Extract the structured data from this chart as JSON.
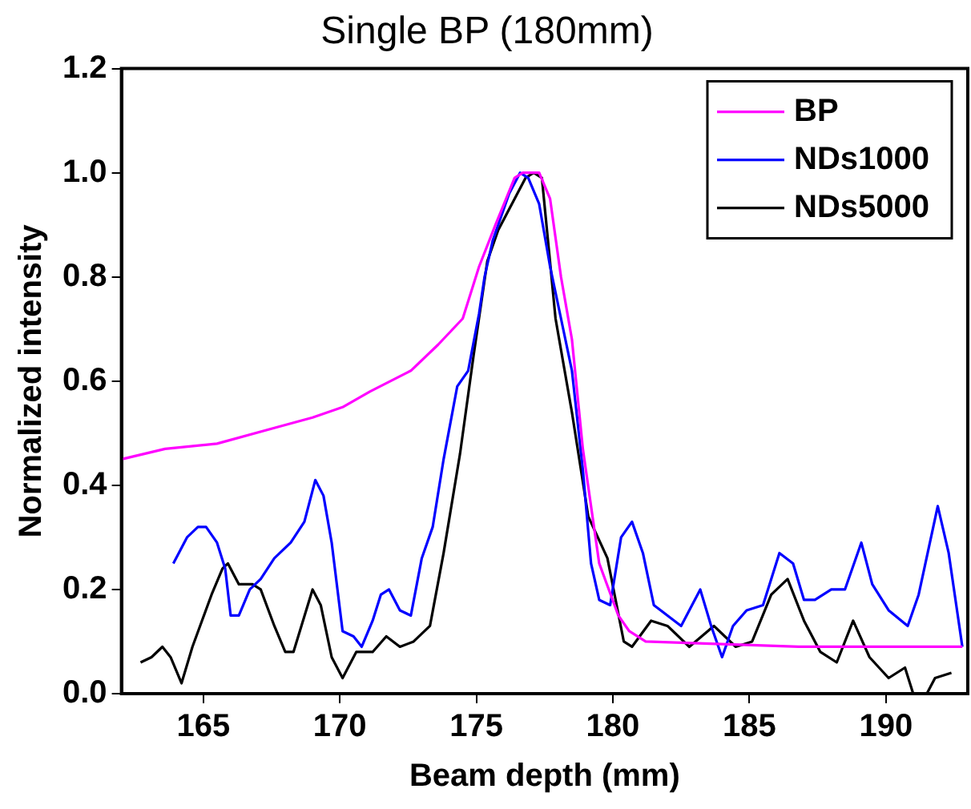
{
  "chart_data": {
    "type": "line",
    "title": "Single BP (180mm)",
    "xlabel": "Beam depth (mm)",
    "ylabel": "Normalized intensity",
    "xlim": [
      162,
      193
    ],
    "xticks": [
      165,
      170,
      175,
      180,
      185,
      190
    ],
    "ylim": [
      0,
      1.2
    ],
    "yticks": [
      {
        "value": 0,
        "label": "0.0"
      },
      {
        "value": 0.2,
        "label": "0.2"
      },
      {
        "value": 0.4,
        "label": "0.4"
      },
      {
        "value": 0.6,
        "label": "0.6"
      },
      {
        "value": 0.8,
        "label": "0.8"
      },
      {
        "value": 1,
        "label": "1.0"
      },
      {
        "value": 1.2,
        "label": "1.2"
      }
    ],
    "grid": false,
    "legend": "top right",
    "marker": "none",
    "line_style": "solid",
    "series": [
      {
        "name": "BP",
        "color": "#ff00ff",
        "x": [
          162,
          163.6,
          165.5,
          167.6,
          169.0,
          170.1,
          171.1,
          172.6,
          173.6,
          174.5,
          175.1,
          175.7,
          176.4,
          176.7,
          177.3,
          177.7,
          178.1,
          178.5,
          178.9,
          179.5,
          180.2,
          180.6,
          181.2,
          186.8,
          192.8
        ],
        "values": [
          0.45,
          0.47,
          0.48,
          0.51,
          0.53,
          0.55,
          0.58,
          0.62,
          0.67,
          0.72,
          0.82,
          0.9,
          0.99,
          1.0,
          1.0,
          0.95,
          0.8,
          0.68,
          0.47,
          0.25,
          0.15,
          0.12,
          0.1,
          0.09,
          0.09
        ]
      },
      {
        "name": "NDs1000",
        "color": "#0000ff",
        "x": [
          163.9,
          164.4,
          164.8,
          165.1,
          165.5,
          165.8,
          166.0,
          166.3,
          166.7,
          167.1,
          167.6,
          168.2,
          168.7,
          169.1,
          169.4,
          169.7,
          170.1,
          170.5,
          170.8,
          171.2,
          171.5,
          171.8,
          172.2,
          172.6,
          173.0,
          173.4,
          173.8,
          174.3,
          174.7,
          175.1,
          175.3,
          175.6,
          176.2,
          176.6,
          176.9,
          177.3,
          177.7,
          178.1,
          178.5,
          178.9,
          179.2,
          179.5,
          179.9,
          180.3,
          180.7,
          181.1,
          181.5,
          182.0,
          182.5,
          183.2,
          183.6,
          184.0,
          184.4,
          184.9,
          185.5,
          186.1,
          186.6,
          187.0,
          187.4,
          188.0,
          188.5,
          189.1,
          189.5,
          190.1,
          190.8,
          191.2,
          191.9,
          192.3,
          192.8
        ],
        "values": [
          0.25,
          0.3,
          0.32,
          0.32,
          0.29,
          0.24,
          0.15,
          0.15,
          0.2,
          0.22,
          0.26,
          0.29,
          0.33,
          0.41,
          0.38,
          0.29,
          0.12,
          0.11,
          0.09,
          0.14,
          0.19,
          0.2,
          0.16,
          0.15,
          0.26,
          0.32,
          0.45,
          0.59,
          0.62,
          0.73,
          0.8,
          0.87,
          0.96,
          1.0,
          0.99,
          0.94,
          0.82,
          0.72,
          0.62,
          0.43,
          0.25,
          0.18,
          0.17,
          0.3,
          0.33,
          0.27,
          0.17,
          0.15,
          0.13,
          0.2,
          0.13,
          0.07,
          0.13,
          0.16,
          0.17,
          0.27,
          0.25,
          0.18,
          0.18,
          0.2,
          0.2,
          0.29,
          0.21,
          0.16,
          0.13,
          0.19,
          0.36,
          0.27,
          0.09
        ]
      },
      {
        "name": "NDs5000",
        "color": "#000000",
        "x": [
          162.7,
          163.1,
          163.5,
          163.8,
          164.2,
          164.6,
          165.3,
          165.7,
          165.9,
          166.3,
          166.8,
          167.1,
          167.6,
          168.0,
          168.3,
          169.0,
          169.3,
          169.7,
          170.1,
          170.6,
          171.2,
          171.7,
          172.2,
          172.7,
          173.3,
          173.8,
          174.4,
          174.9,
          175.4,
          175.8,
          176.3,
          176.8,
          177.1,
          177.4,
          177.9,
          178.5,
          179.1,
          179.8,
          180.4,
          180.7,
          181.4,
          182.0,
          182.8,
          183.7,
          184.5,
          185.1,
          185.8,
          186.4,
          187.0,
          187.6,
          188.2,
          188.8,
          189.4,
          190.1,
          190.7,
          191.0,
          191.5,
          191.8,
          192.4
        ],
        "values": [
          0.06,
          0.07,
          0.09,
          0.07,
          0.02,
          0.09,
          0.19,
          0.24,
          0.25,
          0.21,
          0.21,
          0.2,
          0.13,
          0.08,
          0.08,
          0.2,
          0.17,
          0.07,
          0.03,
          0.08,
          0.08,
          0.11,
          0.09,
          0.1,
          0.13,
          0.27,
          0.46,
          0.65,
          0.83,
          0.89,
          0.94,
          0.99,
          1.0,
          0.99,
          0.72,
          0.54,
          0.34,
          0.26,
          0.1,
          0.09,
          0.14,
          0.13,
          0.09,
          0.13,
          0.09,
          0.1,
          0.19,
          0.22,
          0.14,
          0.08,
          0.06,
          0.14,
          0.07,
          0.03,
          0.05,
          0.0,
          0.0,
          0.03,
          0.04
        ]
      }
    ]
  }
}
